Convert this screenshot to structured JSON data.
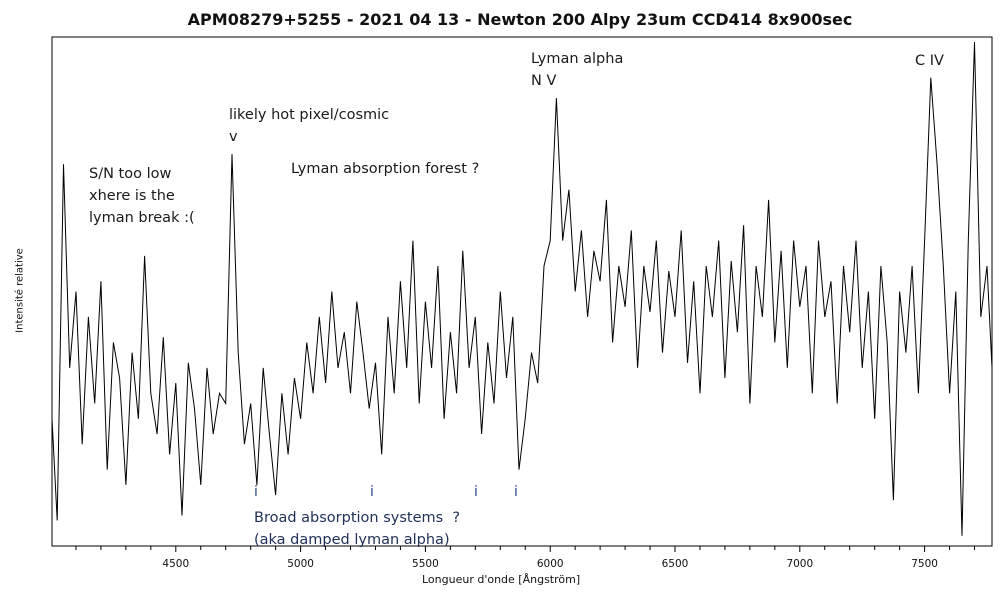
{
  "chart_data": {
    "type": "line",
    "title": "APM08279+5255 - 2021 04 13 - Newton 200 Alpy 23um CCD414 8x900sec",
    "xlabel": "Longueur d'onde [Ångström]",
    "ylabel": "Intensité relative",
    "xlim": [
      4004,
      7770
    ],
    "ylim": [
      0,
      1
    ],
    "x_ticks": [
      4500,
      5000,
      5500,
      6000,
      6500,
      7000,
      7500
    ],
    "x_minor_step": 100,
    "grid": false,
    "line_color": "#000000",
    "x": [
      4000,
      4025,
      4050,
      4075,
      4100,
      4125,
      4150,
      4175,
      4200,
      4225,
      4250,
      4275,
      4300,
      4325,
      4350,
      4375,
      4400,
      4425,
      4450,
      4475,
      4500,
      4525,
      4550,
      4575,
      4600,
      4625,
      4650,
      4675,
      4700,
      4725,
      4750,
      4775,
      4800,
      4825,
      4850,
      4875,
      4900,
      4925,
      4950,
      4975,
      5000,
      5025,
      5050,
      5075,
      5100,
      5125,
      5150,
      5175,
      5200,
      5225,
      5250,
      5275,
      5300,
      5325,
      5350,
      5375,
      5400,
      5425,
      5450,
      5475,
      5500,
      5525,
      5550,
      5575,
      5600,
      5625,
      5650,
      5675,
      5700,
      5725,
      5750,
      5775,
      5800,
      5825,
      5850,
      5875,
      5900,
      5925,
      5950,
      5975,
      6000,
      6025,
      6050,
      6075,
      6100,
      6125,
      6150,
      6175,
      6200,
      6225,
      6250,
      6275,
      6300,
      6325,
      6350,
      6375,
      6400,
      6425,
      6450,
      6475,
      6500,
      6525,
      6550,
      6575,
      6600,
      6625,
      6650,
      6675,
      6700,
      6725,
      6750,
      6775,
      6800,
      6825,
      6850,
      6875,
      6900,
      6925,
      6950,
      6975,
      7000,
      7025,
      7050,
      7075,
      7100,
      7125,
      7150,
      7175,
      7200,
      7225,
      7250,
      7275,
      7300,
      7325,
      7350,
      7375,
      7400,
      7425,
      7450,
      7475,
      7500,
      7525,
      7550,
      7575,
      7600,
      7625,
      7650,
      7675,
      7700,
      7725,
      7750,
      7770
    ],
    "y": [
      0.25,
      0.05,
      0.75,
      0.35,
      0.5,
      0.2,
      0.45,
      0.28,
      0.52,
      0.15,
      0.4,
      0.33,
      0.12,
      0.38,
      0.25,
      0.57,
      0.3,
      0.22,
      0.41,
      0.18,
      0.32,
      0.06,
      0.36,
      0.27,
      0.12,
      0.35,
      0.22,
      0.3,
      0.28,
      0.77,
      0.38,
      0.2,
      0.28,
      0.12,
      0.35,
      0.22,
      0.1,
      0.3,
      0.18,
      0.33,
      0.25,
      0.4,
      0.3,
      0.45,
      0.32,
      0.5,
      0.35,
      0.42,
      0.3,
      0.48,
      0.38,
      0.27,
      0.36,
      0.18,
      0.45,
      0.3,
      0.52,
      0.35,
      0.6,
      0.28,
      0.48,
      0.35,
      0.55,
      0.25,
      0.42,
      0.3,
      0.58,
      0.35,
      0.45,
      0.22,
      0.4,
      0.28,
      0.5,
      0.33,
      0.45,
      0.15,
      0.25,
      0.38,
      0.32,
      0.55,
      0.6,
      0.88,
      0.6,
      0.7,
      0.5,
      0.62,
      0.45,
      0.58,
      0.52,
      0.68,
      0.4,
      0.55,
      0.47,
      0.62,
      0.35,
      0.55,
      0.46,
      0.6,
      0.38,
      0.54,
      0.45,
      0.62,
      0.36,
      0.52,
      0.3,
      0.55,
      0.45,
      0.6,
      0.33,
      0.56,
      0.42,
      0.63,
      0.28,
      0.55,
      0.45,
      0.68,
      0.4,
      0.58,
      0.35,
      0.6,
      0.47,
      0.55,
      0.3,
      0.6,
      0.45,
      0.52,
      0.28,
      0.55,
      0.42,
      0.6,
      0.35,
      0.5,
      0.25,
      0.55,
      0.4,
      0.09,
      0.5,
      0.38,
      0.55,
      0.3,
      0.6,
      0.92,
      0.75,
      0.55,
      0.3,
      0.5,
      0.02,
      0.6,
      0.99,
      0.45,
      0.55,
      0.35
    ]
  },
  "annotations": {
    "sn_low": "S/N too low\nxhere is the\nlyman break :(",
    "hot_pixel": "likely hot pixel/cosmic\nv",
    "lyman_forest": "Lyman absorption forest ?",
    "lyman_alpha": "Lyman alpha\nN V",
    "civ": "C IV",
    "broad_absorption": "Broad absorption systems  ?\n(aka damped lyman alpha)",
    "marker": "i"
  }
}
